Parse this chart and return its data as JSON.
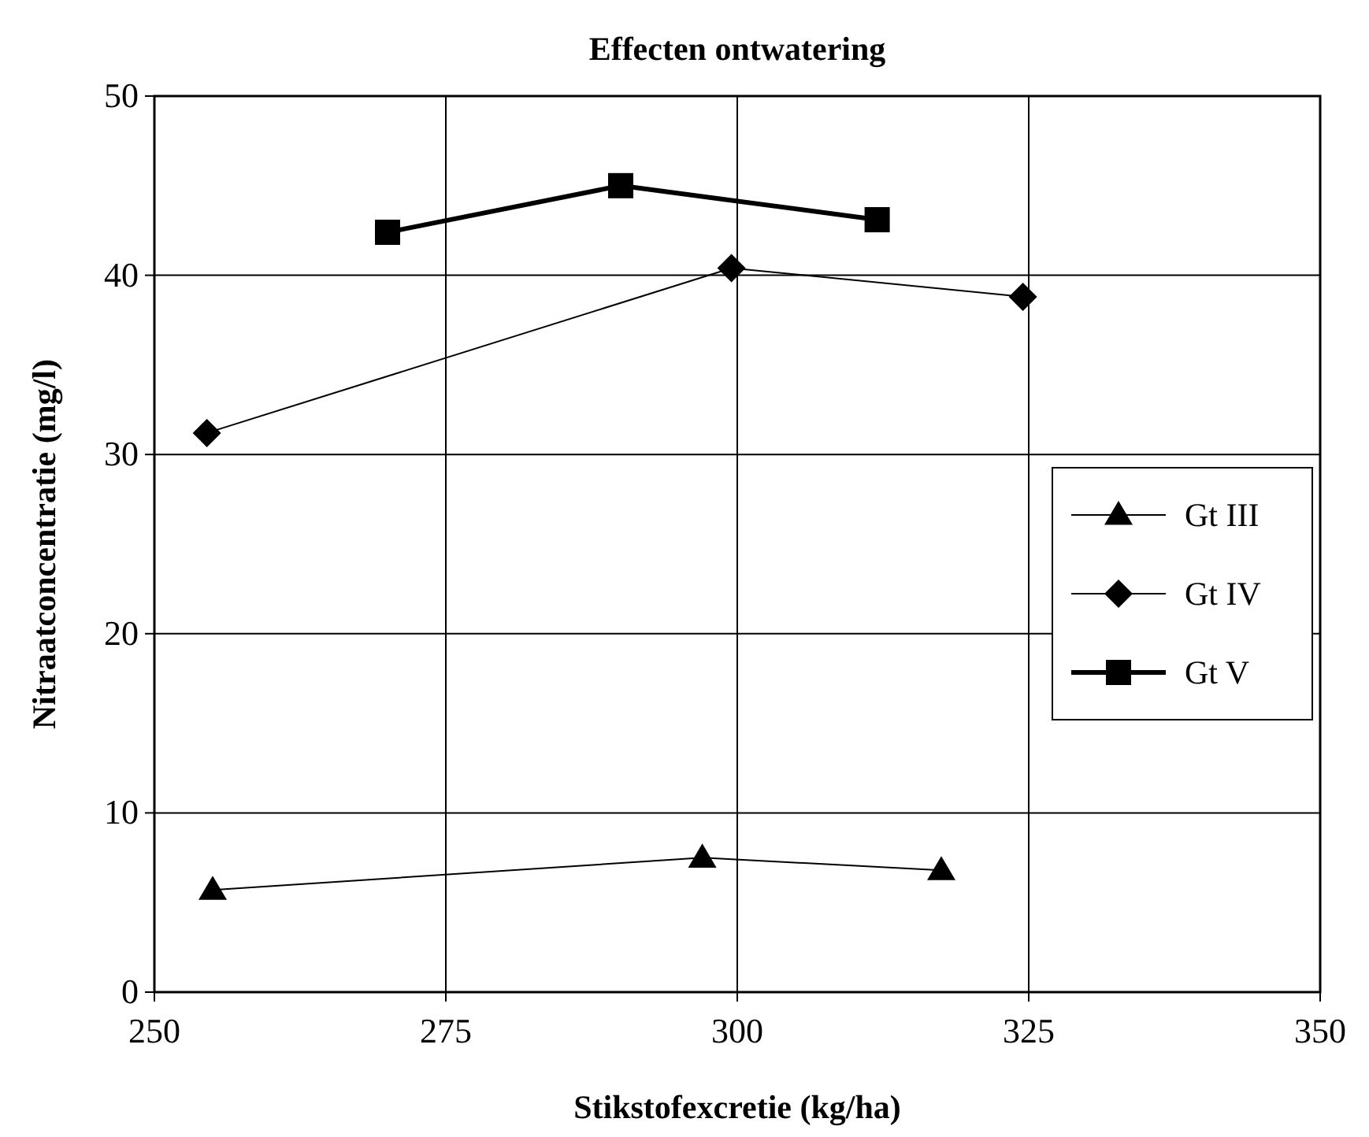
{
  "chart_data": {
    "type": "line",
    "title": "Effecten ontwatering",
    "xlabel": "Stikstofexcretie (kg/ha)",
    "ylabel": "Nitraatconcentratie (mg/l)",
    "xlim": [
      250,
      350
    ],
    "xticks": [
      250,
      275,
      300,
      325,
      350
    ],
    "ylim": [
      0,
      50
    ],
    "yticks": [
      0,
      10,
      20,
      30,
      40,
      50
    ],
    "grid": true,
    "legend": "right",
    "series": [
      {
        "name": "Gt III",
        "color": "#000000",
        "marker": "triangle",
        "x": [
          255,
          297,
          317.5
        ],
        "values": [
          5.7,
          7.5,
          6.8
        ]
      },
      {
        "name": "Gt IV",
        "color": "#000000",
        "marker": "diamond",
        "x": [
          254.5,
          299.5,
          324.5
        ],
        "values": [
          31.2,
          40.4,
          38.8
        ]
      },
      {
        "name": "Gt V",
        "color": "#000000",
        "marker": "square",
        "x": [
          270,
          290,
          312
        ],
        "values": [
          42.4,
          45,
          43.1
        ]
      }
    ]
  }
}
